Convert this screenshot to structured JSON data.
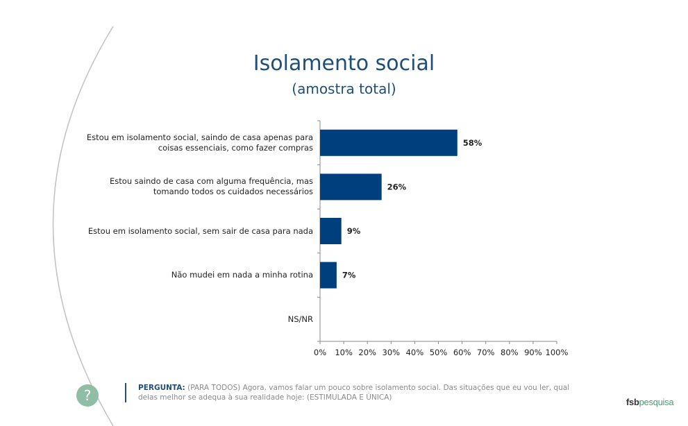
{
  "title": "Isolamento social",
  "subtitle": "(amostra total)",
  "chart_data": {
    "type": "bar",
    "orientation": "horizontal",
    "title": "Isolamento social",
    "subtitle": "(amostra total)",
    "categories": [
      "Estou em isolamento social, saindo de casa apenas para coisas essenciais, como fazer compras",
      "Estou saindo de casa com alguma frequência, mas tomando todos os cuidados necessários",
      "Estou em isolamento social, sem sair de casa para nada",
      "Não mudei em nada a minha rotina",
      "NS/NR"
    ],
    "values": [
      58,
      26,
      9,
      7,
      0
    ],
    "value_labels": [
      "58%",
      "26%",
      "9%",
      "7%",
      ""
    ],
    "xlim": [
      0,
      100
    ],
    "xticks": [
      "0%",
      "10%",
      "20%",
      "30%",
      "40%",
      "50%",
      "60%",
      "70%",
      "80%",
      "90%",
      "100%"
    ],
    "bar_color": "#003f7d",
    "grid": false,
    "legend": "none"
  },
  "footer": {
    "question_label": "PERGUNTA:",
    "question_text": "(PARA TODOS) Agora, vamos falar um pouco sobre isolamento social. Das situações que eu vou ler, qual delas melhor se adequa à sua realidade hoje: (ESTIMULADA E ÚNICA)"
  },
  "help_icon": "question-mark-icon",
  "logo": {
    "part1": "fsb",
    "part2": "pesquisa"
  }
}
